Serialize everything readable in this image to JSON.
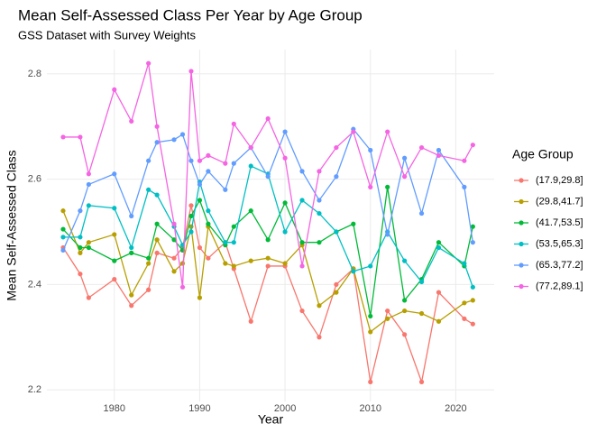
{
  "chart_data": {
    "type": "line",
    "title": "Mean Self-Assessed Class Per Year by Age Group",
    "subtitle": "GSS Dataset with Survey Weights",
    "x_label": "Year",
    "y_label": "Mean Self-Assessed Class",
    "legend_title": "Age Group",
    "legend_position": "right",
    "grid": true,
    "x": [
      1974,
      1976,
      1977,
      1980,
      1982,
      1984,
      1985,
      1987,
      1988,
      1989,
      1990,
      1991,
      1993,
      1994,
      1996,
      1998,
      2000,
      2002,
      2004,
      2006,
      2008,
      2010,
      2012,
      2014,
      2016,
      2018,
      2021,
      2022
    ],
    "xlim": [
      1972.1,
      2024.5
    ],
    "xticks": [
      1980,
      1990,
      2000,
      2010,
      2020
    ],
    "ylim": [
      2.178,
      2.846
    ],
    "yticks": [
      2.2,
      2.4,
      2.6,
      2.8
    ],
    "series": [
      {
        "name": "(17.9,29.8]",
        "color": "#F8766D",
        "values": [
          2.47,
          2.42,
          2.375,
          2.41,
          2.36,
          2.39,
          2.46,
          2.45,
          2.47,
          2.55,
          2.47,
          2.45,
          2.48,
          2.43,
          2.33,
          2.435,
          2.435,
          2.35,
          2.3,
          2.4,
          2.43,
          2.215,
          2.35,
          2.305,
          2.215,
          2.385,
          2.335,
          2.325
        ]
      },
      {
        "name": "(29.8,41.7]",
        "color": "#B79F00",
        "values": [
          2.54,
          2.46,
          2.48,
          2.495,
          2.38,
          2.44,
          2.485,
          2.425,
          2.44,
          2.51,
          2.375,
          2.51,
          2.44,
          2.435,
          2.445,
          2.45,
          2.44,
          2.475,
          2.36,
          2.385,
          2.43,
          2.31,
          2.335,
          2.35,
          2.345,
          2.33,
          2.365,
          2.37
        ]
      },
      {
        "name": "(41.7,53.5]",
        "color": "#00BA38",
        "values": [
          2.505,
          2.47,
          2.47,
          2.445,
          2.46,
          2.45,
          2.515,
          2.485,
          2.465,
          2.53,
          2.56,
          2.515,
          2.475,
          2.51,
          2.54,
          2.485,
          2.555,
          2.48,
          2.48,
          2.5,
          2.515,
          2.34,
          2.585,
          2.37,
          2.41,
          2.48,
          2.435,
          2.51
        ]
      },
      {
        "name": "(53.5,65.3]",
        "color": "#00BFC4",
        "values": [
          2.49,
          2.49,
          2.55,
          2.545,
          2.47,
          2.58,
          2.57,
          2.51,
          2.475,
          2.5,
          2.595,
          2.54,
          2.48,
          2.48,
          2.625,
          2.61,
          2.5,
          2.56,
          2.535,
          2.5,
          2.425,
          2.435,
          2.5,
          2.445,
          2.405,
          2.47,
          2.44,
          2.395
        ]
      },
      {
        "name": "(65.3,77.2]",
        "color": "#619CFF",
        "values": [
          2.465,
          2.54,
          2.59,
          2.61,
          2.53,
          2.635,
          2.67,
          2.675,
          2.685,
          2.635,
          2.59,
          2.615,
          2.58,
          2.63,
          2.66,
          2.605,
          2.69,
          2.615,
          2.56,
          2.605,
          2.695,
          2.655,
          2.495,
          2.64,
          2.535,
          2.655,
          2.585,
          2.48
        ]
      },
      {
        "name": "(77.2,89.1]",
        "color": "#F564E3",
        "values": [
          2.68,
          2.68,
          2.61,
          2.77,
          2.71,
          2.82,
          2.7,
          2.515,
          2.395,
          2.805,
          2.635,
          2.645,
          2.63,
          2.705,
          2.66,
          2.715,
          2.64,
          2.435,
          2.615,
          2.66,
          2.69,
          2.585,
          2.69,
          2.605,
          2.66,
          2.645,
          2.635,
          2.665
        ]
      }
    ]
  }
}
